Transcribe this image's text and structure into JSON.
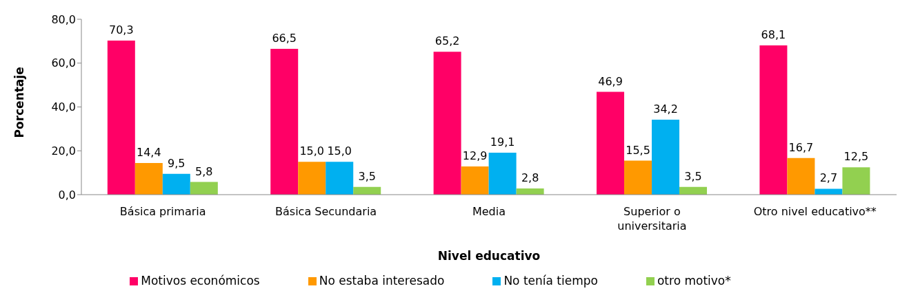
{
  "chart_data": {
    "type": "bar",
    "xlabel": "Nivel educativo",
    "ylabel": "Porcentaje",
    "categories": [
      "Básica primaria",
      "Básica Secundaria",
      "Media",
      "Superior o universitaria",
      "Otro nivel educativo**"
    ],
    "series": [
      {
        "name": "Motivos económicos",
        "color": "#ff0066",
        "values": [
          70.3,
          66.5,
          65.2,
          46.9,
          68.1
        ],
        "value_labels": [
          "70,3",
          "66,5",
          "65,2",
          "46,9",
          "68,1"
        ]
      },
      {
        "name": "No estaba interesado",
        "color": "#ff9900",
        "values": [
          14.4,
          15.0,
          12.9,
          15.5,
          16.7
        ],
        "value_labels": [
          "14,4",
          "15,0",
          "12,9",
          "15,5",
          "16,7"
        ]
      },
      {
        "name": "No tenía tiempo",
        "color": "#00b0f0",
        "values": [
          9.5,
          15.0,
          19.1,
          34.2,
          2.7
        ],
        "value_labels": [
          "9,5",
          "15,0",
          "19,1",
          "34,2",
          "2,7"
        ]
      },
      {
        "name": "otro motivo*",
        "color": "#92d050",
        "values": [
          5.8,
          3.5,
          2.8,
          3.5,
          12.5
        ],
        "value_labels": [
          "5,8",
          "3,5",
          "2,8",
          "3,5",
          "12,5"
        ]
      }
    ],
    "ylim": [
      0,
      80
    ],
    "yticks": [
      {
        "value": 0,
        "label": "0,0"
      },
      {
        "value": 20,
        "label": "20,0"
      },
      {
        "value": 40,
        "label": "40,0"
      },
      {
        "value": 60,
        "label": "60,0"
      },
      {
        "value": 80,
        "label": "80,0"
      }
    ],
    "grid": false,
    "legend": "bottom"
  }
}
